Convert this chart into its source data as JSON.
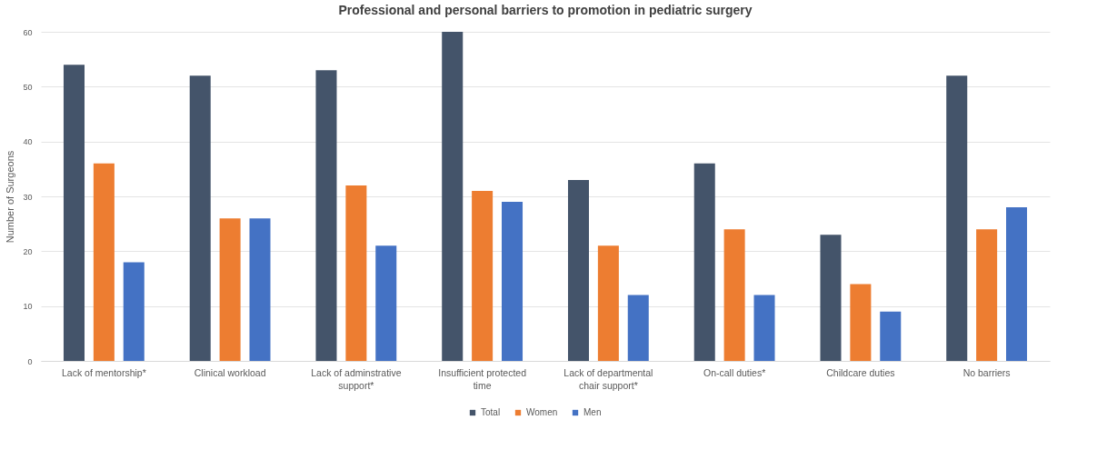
{
  "chart_data": {
    "type": "bar",
    "title": "Professional and personal barriers to promotion in pediatric surgery",
    "ylabel": "Number of Surgeons",
    "categories": [
      "Lack of mentorship*",
      "Clinical workload",
      "Lack of adminstrative support*",
      "Insufficient protected time",
      "Lack of departmental chair support*",
      "On-call duties*",
      "Childcare duties",
      "No barriers"
    ],
    "series": [
      {
        "name": "Total",
        "color": "#44546a",
        "values": [
          54,
          52,
          53,
          60,
          33,
          36,
          23,
          52
        ]
      },
      {
        "name": "Women",
        "color": "#ed7d31",
        "values": [
          36,
          26,
          32,
          31,
          21,
          24,
          14,
          24
        ]
      },
      {
        "name": "Men",
        "color": "#4472c4",
        "values": [
          18,
          26,
          21,
          29,
          12,
          12,
          9,
          28
        ]
      }
    ],
    "ylim": [
      0,
      60
    ],
    "yticks": [
      0,
      10,
      20,
      30,
      40,
      50,
      60
    ],
    "grid": "y",
    "legend": "bottom"
  }
}
